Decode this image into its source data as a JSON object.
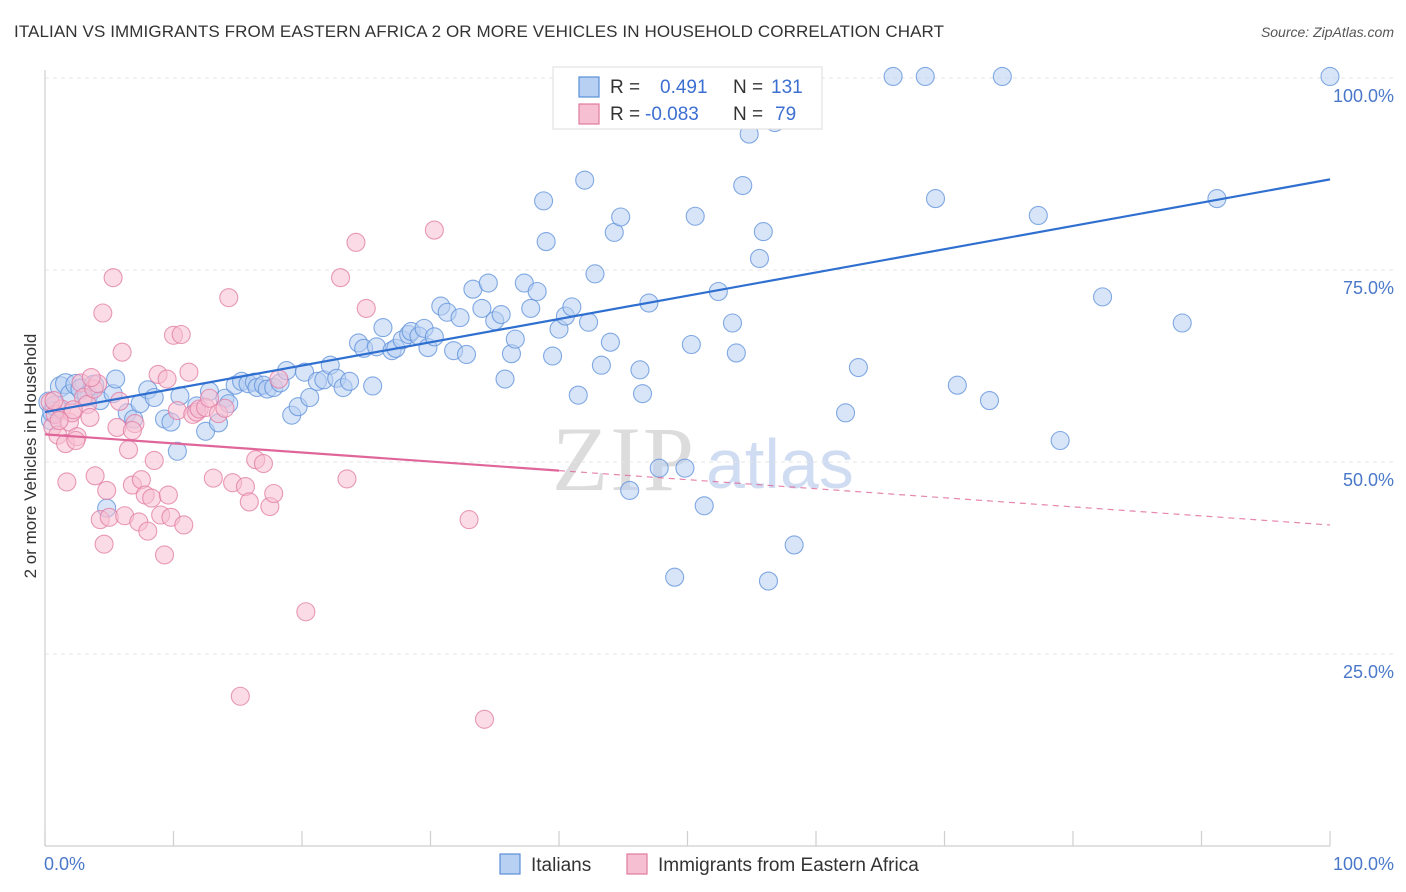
{
  "header": {
    "title": "ITALIAN VS IMMIGRANTS FROM EASTERN AFRICA 2 OR MORE VEHICLES IN HOUSEHOLD CORRELATION CHART",
    "source": "Source: ZipAtlas.com"
  },
  "watermark": {
    "zip": "ZIP",
    "atlas": "atlas"
  },
  "legend": {
    "r_label": "R =",
    "n_label": "N =",
    "rows": [
      {
        "r_value": "0.491",
        "n_value": "131",
        "color": "#5b8fd9",
        "fill": "#b8d0f2"
      },
      {
        "r_value": "-0.083",
        "n_value": "79",
        "color": "#e07aa0",
        "fill": "#f7bfd2"
      }
    ]
  },
  "bottom_legend": [
    {
      "label": "Italians",
      "fill": "#b8d0f2",
      "stroke": "#5b8fd9"
    },
    {
      "label": "Immigrants from Eastern Africa",
      "fill": "#f7bfd2",
      "stroke": "#e07aa0"
    }
  ],
  "chart_data": {
    "type": "scatter",
    "title": "ITALIAN VS IMMIGRANTS FROM EASTERN AFRICA 2 OR MORE VEHICLES IN HOUSEHOLD CORRELATION CHART",
    "xlabel": "",
    "ylabel": "2 or more Vehicles in Household",
    "xlim": [
      0,
      100
    ],
    "ylim": [
      0,
      103
    ],
    "x_tick_labels": [
      "0.0%",
      "100.0%"
    ],
    "y_ticks": [
      25,
      50,
      75,
      100
    ],
    "y_tick_labels": [
      "25.0%",
      "50.0%",
      "75.0%",
      "100.0%"
    ],
    "grid": true,
    "legend_position": "top-center",
    "series": [
      {
        "name": "Italians",
        "color": "#5b8fd9",
        "fill": "#b8d0f2",
        "trend": {
          "x": [
            0,
            100
          ],
          "y": [
            56.5,
            86.8
          ],
          "dashed_from": null
        },
        "points": [
          [
            0.3,
            57.8
          ],
          [
            0.5,
            55.5
          ],
          [
            0.6,
            56.5
          ],
          [
            0.8,
            57.3
          ],
          [
            1.2,
            59.8
          ],
          [
            1.6,
            60.2
          ],
          [
            2.0,
            58.8
          ],
          [
            2.4,
            60.1
          ],
          [
            2.8,
            59.5
          ],
          [
            3.3,
            58.6
          ],
          [
            3.8,
            60.0
          ],
          [
            4.3,
            58.0
          ],
          [
            4.8,
            44.0
          ],
          [
            5.3,
            58.9
          ],
          [
            5.5,
            60.8
          ],
          [
            6.4,
            56.4
          ],
          [
            6.9,
            55.6
          ],
          [
            7.4,
            57.6
          ],
          [
            8.0,
            59.4
          ],
          [
            8.5,
            58.4
          ],
          [
            9.3,
            55.6
          ],
          [
            9.8,
            55.2
          ],
          [
            10.3,
            51.4
          ],
          [
            10.5,
            58.6
          ],
          [
            11.8,
            57.3
          ],
          [
            12.5,
            54.0
          ],
          [
            12.8,
            59.2
          ],
          [
            13.5,
            55.1
          ],
          [
            14.0,
            58.3
          ],
          [
            14.3,
            57.6
          ],
          [
            14.8,
            60.0
          ],
          [
            15.3,
            60.5
          ],
          [
            15.8,
            60.2
          ],
          [
            16.3,
            60.4
          ],
          [
            16.5,
            59.7
          ],
          [
            17.0,
            60.0
          ],
          [
            17.3,
            59.5
          ],
          [
            17.8,
            59.7
          ],
          [
            18.3,
            60.3
          ],
          [
            18.8,
            61.9
          ],
          [
            19.2,
            56.1
          ],
          [
            19.7,
            57.2
          ],
          [
            20.2,
            61.7
          ],
          [
            20.6,
            58.4
          ],
          [
            21.2,
            60.5
          ],
          [
            21.7,
            60.7
          ],
          [
            22.2,
            62.6
          ],
          [
            22.7,
            60.9
          ],
          [
            23.2,
            59.7
          ],
          [
            23.7,
            60.5
          ],
          [
            24.4,
            65.5
          ],
          [
            24.8,
            64.8
          ],
          [
            25.5,
            59.9
          ],
          [
            25.8,
            65.0
          ],
          [
            26.3,
            67.5
          ],
          [
            27.0,
            64.5
          ],
          [
            27.3,
            64.8
          ],
          [
            27.8,
            65.9
          ],
          [
            28.3,
            66.6
          ],
          [
            28.5,
            67.0
          ],
          [
            29.1,
            66.4
          ],
          [
            29.5,
            67.4
          ],
          [
            29.8,
            64.9
          ],
          [
            30.3,
            66.3
          ],
          [
            30.8,
            70.3
          ],
          [
            31.3,
            69.5
          ],
          [
            31.8,
            64.5
          ],
          [
            32.3,
            68.8
          ],
          [
            32.8,
            64.0
          ],
          [
            33.3,
            72.5
          ],
          [
            34.0,
            70.0
          ],
          [
            34.5,
            73.3
          ],
          [
            35.0,
            68.4
          ],
          [
            35.5,
            69.2
          ],
          [
            35.8,
            60.8
          ],
          [
            36.3,
            64.1
          ],
          [
            36.6,
            66.0
          ],
          [
            37.3,
            73.3
          ],
          [
            37.8,
            70.0
          ],
          [
            38.3,
            72.2
          ],
          [
            38.8,
            84.0
          ],
          [
            39.0,
            78.7
          ],
          [
            39.5,
            63.8
          ],
          [
            40.0,
            67.3
          ],
          [
            40.5,
            69.0
          ],
          [
            41.0,
            70.2
          ],
          [
            41.5,
            58.7
          ],
          [
            42.0,
            86.7
          ],
          [
            42.3,
            68.2
          ],
          [
            42.8,
            74.5
          ],
          [
            43.3,
            62.6
          ],
          [
            44.0,
            65.6
          ],
          [
            44.3,
            79.9
          ],
          [
            44.8,
            81.9
          ],
          [
            45.5,
            46.3
          ],
          [
            46.3,
            62.0
          ],
          [
            46.5,
            58.9
          ],
          [
            47.0,
            70.7
          ],
          [
            47.8,
            49.2
          ],
          [
            49.0,
            35.0
          ],
          [
            49.8,
            49.2
          ],
          [
            50.3,
            65.3
          ],
          [
            50.6,
            82.0
          ],
          [
            51.3,
            44.3
          ],
          [
            52.4,
            72.2
          ],
          [
            53.5,
            68.1
          ],
          [
            53.8,
            64.2
          ],
          [
            54.3,
            86.0
          ],
          [
            54.8,
            92.7
          ],
          [
            55.6,
            76.5
          ],
          [
            55.9,
            80.0
          ],
          [
            56.3,
            34.5
          ],
          [
            56.8,
            94.2
          ],
          [
            57.3,
            100.2
          ],
          [
            58.3,
            39.2
          ],
          [
            62.3,
            56.4
          ],
          [
            63.3,
            62.3
          ],
          [
            66.0,
            100.2
          ],
          [
            68.5,
            100.2
          ],
          [
            69.3,
            84.3
          ],
          [
            71.0,
            60.0
          ],
          [
            73.5,
            58.0
          ],
          [
            74.5,
            100.2
          ],
          [
            77.3,
            82.1
          ],
          [
            79.0,
            52.8
          ],
          [
            82.3,
            71.5
          ],
          [
            88.5,
            68.1
          ],
          [
            91.2,
            84.3
          ],
          [
            100.0,
            100.2
          ],
          [
            47.0,
            100.0
          ],
          [
            50.2,
            100.0
          ]
        ]
      },
      {
        "name": "Immigrants from Eastern Africa",
        "color": "#e07aa0",
        "fill": "#f7bfd2",
        "trend": {
          "x": [
            0,
            100
          ],
          "y": [
            53.6,
            41.8
          ],
          "dashed_from": 40.0
        },
        "points": [
          [
            0.4,
            57.8
          ],
          [
            0.6,
            54.6
          ],
          [
            0.8,
            56.2
          ],
          [
            1.0,
            53.5
          ],
          [
            1.3,
            56.9
          ],
          [
            1.6,
            52.4
          ],
          [
            1.7,
            47.4
          ],
          [
            1.9,
            55.2
          ],
          [
            2.1,
            56.4
          ],
          [
            2.5,
            53.3
          ],
          [
            2.8,
            60.3
          ],
          [
            3.0,
            58.4
          ],
          [
            3.3,
            57.5
          ],
          [
            3.5,
            55.8
          ],
          [
            3.8,
            59.5
          ],
          [
            3.9,
            48.2
          ],
          [
            4.1,
            60.2
          ],
          [
            4.3,
            42.5
          ],
          [
            4.5,
            69.4
          ],
          [
            4.6,
            39.3
          ],
          [
            4.8,
            46.3
          ],
          [
            5.0,
            42.8
          ],
          [
            5.3,
            74.0
          ],
          [
            5.6,
            54.5
          ],
          [
            5.8,
            57.9
          ],
          [
            6.0,
            64.3
          ],
          [
            6.2,
            43.0
          ],
          [
            6.5,
            51.6
          ],
          [
            6.8,
            47.0
          ],
          [
            7.0,
            55.0
          ],
          [
            7.3,
            42.2
          ],
          [
            7.5,
            47.7
          ],
          [
            7.8,
            45.7
          ],
          [
            8.0,
            41.0
          ],
          [
            8.3,
            45.3
          ],
          [
            8.5,
            50.2
          ],
          [
            8.8,
            61.4
          ],
          [
            9.0,
            43.1
          ],
          [
            9.3,
            37.9
          ],
          [
            9.6,
            45.7
          ],
          [
            9.8,
            42.8
          ],
          [
            10.0,
            66.5
          ],
          [
            10.3,
            56.7
          ],
          [
            10.6,
            66.6
          ],
          [
            10.8,
            41.8
          ],
          [
            11.2,
            61.7
          ],
          [
            11.5,
            56.2
          ],
          [
            11.8,
            56.5
          ],
          [
            12.0,
            56.9
          ],
          [
            12.5,
            57.1
          ],
          [
            12.8,
            58.3
          ],
          [
            13.1,
            47.9
          ],
          [
            13.5,
            56.3
          ],
          [
            14.0,
            57.0
          ],
          [
            14.3,
            71.4
          ],
          [
            14.6,
            47.3
          ],
          [
            15.2,
            19.5
          ],
          [
            15.6,
            46.8
          ],
          [
            15.9,
            44.8
          ],
          [
            16.4,
            50.3
          ],
          [
            17.0,
            49.8
          ],
          [
            17.5,
            44.2
          ],
          [
            17.8,
            45.9
          ],
          [
            18.2,
            60.8
          ],
          [
            20.3,
            30.5
          ],
          [
            23.0,
            74.0
          ],
          [
            23.5,
            47.8
          ],
          [
            24.2,
            78.6
          ],
          [
            25.0,
            70.0
          ],
          [
            30.3,
            80.2
          ],
          [
            33.0,
            42.5
          ],
          [
            34.2,
            16.5
          ],
          [
            2.2,
            56.8
          ],
          [
            3.6,
            61.0
          ],
          [
            1.1,
            55.4
          ],
          [
            0.7,
            58.0
          ],
          [
            2.4,
            52.8
          ],
          [
            9.5,
            60.8
          ],
          [
            6.8,
            54.1
          ]
        ]
      }
    ]
  }
}
